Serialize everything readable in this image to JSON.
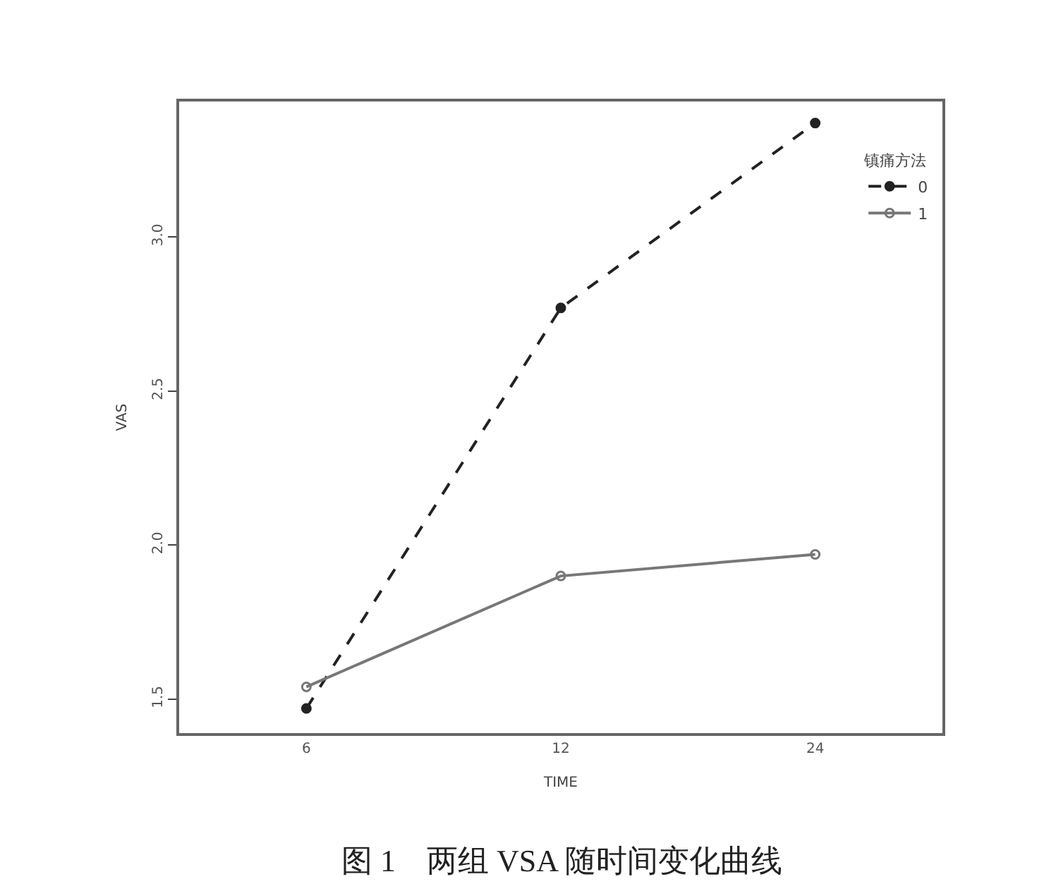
{
  "chart_data": {
    "type": "line",
    "xlabel": "TIME",
    "ylabel": "VAS",
    "legend_title": "镇痛方法",
    "categories": [
      "6",
      "12",
      "24"
    ],
    "series": [
      {
        "name": "0",
        "color": "#222222",
        "values": [
          1.47,
          2.77,
          3.37
        ],
        "line_style": "dashed"
      },
      {
        "name": "1",
        "color": "#777777",
        "values": [
          1.54,
          1.9,
          1.97
        ],
        "line_style": "solid"
      }
    ],
    "ylim": [
      1.39,
      3.44
    ],
    "yticks": [
      {
        "value": 1.5,
        "label": "1.5"
      },
      {
        "value": 2.0,
        "label": "2.0"
      },
      {
        "value": 2.5,
        "label": "2.5"
      },
      {
        "value": 3.0,
        "label": "3.0"
      }
    ],
    "marker": "circle",
    "legend": "top right",
    "annotations": [
      "图 1　两组 VSA 随时间变化曲线"
    ]
  }
}
